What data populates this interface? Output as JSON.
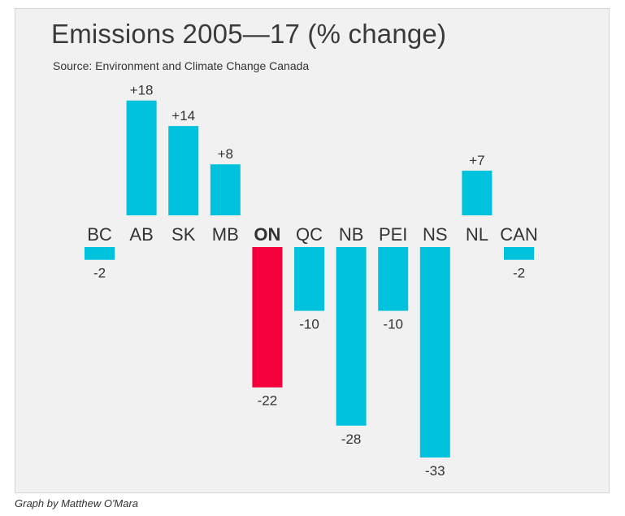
{
  "page": {
    "credit": "Graph by Matthew O'Mara"
  },
  "chart_data": {
    "type": "bar",
    "title": "Emissions 2005—17 (% change)",
    "subtitle": "Source: Environment and Climate Change Canada",
    "categories": [
      "BC",
      "AB",
      "SK",
      "MB",
      "ON",
      "QC",
      "NB",
      "PEI",
      "NS",
      "NL",
      "CAN"
    ],
    "values": [
      -2,
      18,
      14,
      8,
      -22,
      -10,
      -28,
      -10,
      -33,
      7,
      -2
    ],
    "value_labels": [
      "-2",
      "+18",
      "+14",
      "+8",
      "-22",
      "-10",
      "-28",
      "-10",
      "-33",
      "+7",
      "-2"
    ],
    "highlight": "ON",
    "colors": {
      "bar": "#00c2dc",
      "highlight": "#f5003c",
      "text": "#333333",
      "background": "#f1f1f1"
    },
    "grid": false,
    "legend": "none"
  }
}
